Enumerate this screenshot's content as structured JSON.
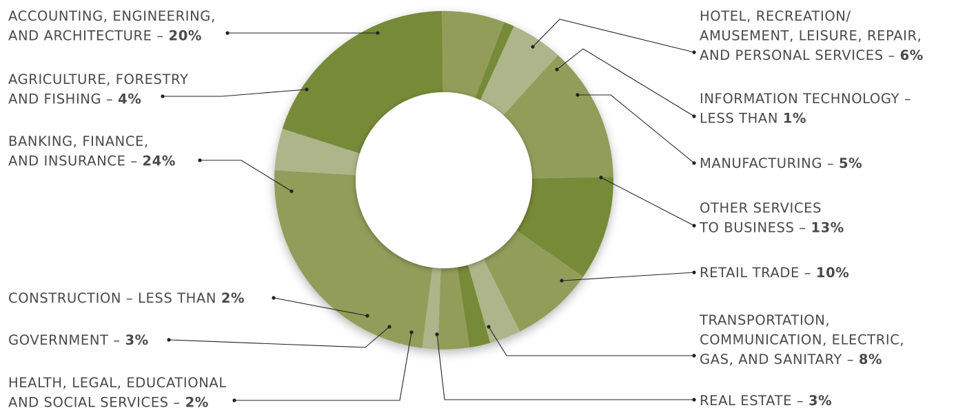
{
  "chart_data": {
    "type": "pie",
    "variant": "donut",
    "colors": {
      "dark": "#778A37",
      "medium": "#939D5A",
      "light": "#AFB58A",
      "background": "#FFFFFF",
      "label_text": "#4A4A4A",
      "leader_line": "#222222"
    },
    "slices": [
      {
        "id": "accounting",
        "lines": [
          "ACCOUNTING, ENGINEERING,",
          "AND ARCHITECTURE – "
        ],
        "pct_label": "20%",
        "value": 20,
        "color": "dark"
      },
      {
        "id": "hotel",
        "lines": [
          "HOTEL, RECREATION/",
          "AMUSEMENT, LEISURE, REPAIR,",
          "AND PERSONAL SERVICES – "
        ],
        "pct_label": "6%",
        "value": 6,
        "color": "medium"
      },
      {
        "id": "it",
        "lines": [
          "INFORMATION TECHNOLOGY –",
          "LESS THAN "
        ],
        "pct_label": "1%",
        "value": 1,
        "color": "dark"
      },
      {
        "id": "manufacturing",
        "lines": [
          "MANUFACTURING – "
        ],
        "pct_label": "5%",
        "value": 5,
        "color": "light"
      },
      {
        "id": "other-services",
        "lines": [
          "OTHER SERVICES",
          "TO BUSINESS – "
        ],
        "pct_label": "13%",
        "value": 13,
        "color": "medium"
      },
      {
        "id": "retail",
        "lines": [
          "RETAIL TRADE – "
        ],
        "pct_label": "10%",
        "value": 10,
        "color": "dark"
      },
      {
        "id": "transportation",
        "lines": [
          "TRANSPORTATION,",
          "COMMUNICATION, ELECTRIC,",
          "GAS, AND SANITARY – "
        ],
        "pct_label": "8%",
        "value": 8,
        "color": "medium"
      },
      {
        "id": "real-estate",
        "lines": [
          "REAL ESTATE – "
        ],
        "pct_label": "3%",
        "value": 3,
        "color": "light"
      },
      {
        "id": "health",
        "lines": [
          "HEALTH, LEGAL, EDUCATIONAL",
          "AND SOCIAL SERVICES – "
        ],
        "pct_label": "2%",
        "value": 2,
        "color": "dark"
      },
      {
        "id": "government",
        "lines": [
          "GOVERNMENT – "
        ],
        "pct_label": "3%",
        "value": 3,
        "color": "medium"
      },
      {
        "id": "construction",
        "lines": [
          "CONSTRUCTION – LESS THAN "
        ],
        "pct_label": "2%",
        "value": 1.5,
        "color": "light"
      },
      {
        "id": "banking",
        "lines": [
          "BANKING, FINANCE,",
          "AND INSURANCE – "
        ],
        "pct_label": "24%",
        "value": 24,
        "color": "medium"
      },
      {
        "id": "agriculture",
        "lines": [
          "AGRICULTURE, FORESTRY",
          "AND FISHING – "
        ],
        "pct_label": "4%",
        "value": 4,
        "color": "light"
      }
    ]
  }
}
